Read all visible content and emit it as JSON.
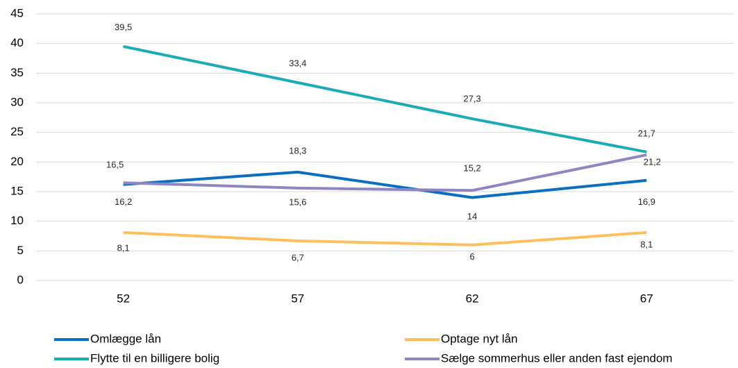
{
  "chart_data": {
    "type": "line",
    "categories": [
      "52",
      "57",
      "62",
      "67"
    ],
    "series": [
      {
        "name": "Omlægge lån",
        "color": "#0a6fc2",
        "values": [
          16.2,
          18.3,
          14,
          16.9
        ],
        "value_labels": [
          "16,2",
          "18,3",
          "14",
          "16,9"
        ]
      },
      {
        "name": "Optage nyt lån",
        "color": "#ffbe5c",
        "values": [
          8.1,
          6.7,
          6,
          8.1
        ],
        "value_labels": [
          "8,1",
          "6,7",
          "6",
          "8,1"
        ]
      },
      {
        "name": "Flytte til en billigere bolig",
        "color": "#1aacb5",
        "values": [
          39.5,
          33.4,
          27.3,
          21.7
        ],
        "value_labels": [
          "39,5",
          "33,4",
          "27,3",
          "21,7"
        ]
      },
      {
        "name": "Sælge sommerhus eller anden fast ejendom",
        "color": "#8e86c0",
        "values": [
          16.5,
          15.6,
          15.2,
          21.2
        ],
        "value_labels": [
          "16,5",
          "15,6",
          "15,2",
          "21,2"
        ]
      }
    ],
    "ylim": [
      0,
      45
    ],
    "yticks": [
      0,
      5,
      10,
      15,
      20,
      25,
      30,
      35,
      40,
      45
    ],
    "grid": true,
    "legend": "bottom"
  }
}
